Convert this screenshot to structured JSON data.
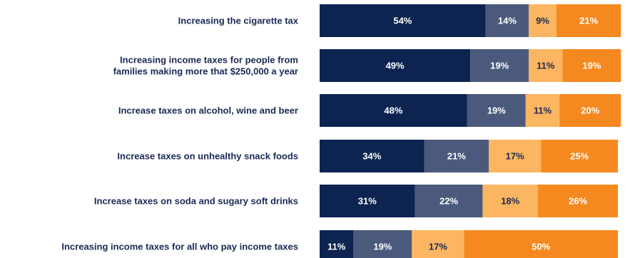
{
  "chart_data": {
    "type": "bar",
    "orientation": "horizontal",
    "stacked": true,
    "grid": false,
    "legend": "none",
    "categories": [
      "Increasing the cigarette tax",
      "Increasing income taxes for people from families making more that $250,000 a year",
      "Increase taxes on alcohol, wine and beer",
      "Increase taxes on unhealthy snack foods",
      "Increase taxes on soda and sugary soft drinks",
      "Increasing income taxes for all who pay income taxes"
    ],
    "category_lines": [
      [
        "Increasing the cigarette tax"
      ],
      [
        "Increasing income taxes for people from",
        "families making more that $250,000 a year"
      ],
      [
        "Increase taxes on alcohol, wine and beer"
      ],
      [
        "Increase taxes on unhealthy snack foods"
      ],
      [
        "Increase taxes on soda and sugary soft drinks"
      ],
      [
        "Increasing income taxes for all who pay income taxes"
      ]
    ],
    "unit": "%",
    "series": [
      {
        "values": [
          54,
          49,
          48,
          34,
          31,
          11
        ],
        "color": "#0d2451",
        "label_color": "#ffffff"
      },
      {
        "values": [
          14,
          19,
          19,
          21,
          22,
          19
        ],
        "color": "#4b5a7c",
        "label_color": "#ffffff"
      },
      {
        "values": [
          9,
          11,
          11,
          17,
          18,
          17
        ],
        "color": "#fcb560",
        "label_color": "#1a2a55"
      },
      {
        "values": [
          21,
          19,
          20,
          25,
          26,
          50
        ],
        "color": "#f5891f",
        "label_color": "#ffffff"
      }
    ]
  }
}
